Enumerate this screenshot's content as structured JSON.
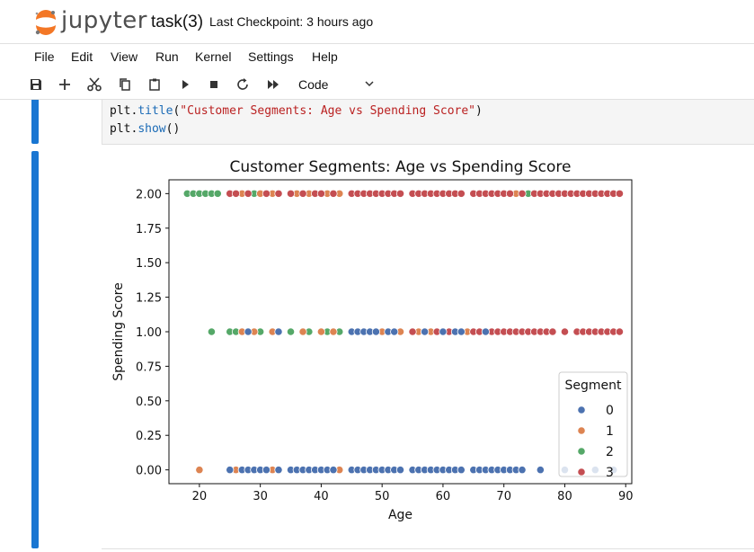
{
  "header": {
    "brand": "jupyter",
    "notebook_title": "task(3)",
    "checkpoint": "Last Checkpoint: 3 hours ago"
  },
  "menu": [
    "File",
    "Edit",
    "View",
    "Run",
    "Kernel",
    "Settings",
    "Help"
  ],
  "toolbar": {
    "cell_type": "Code",
    "icons": [
      "save-icon",
      "plus-icon",
      "scissors-icon",
      "copy-icon",
      "paste-icon",
      "run-icon",
      "stop-icon",
      "restart-icon",
      "fast-forward-icon",
      "chevron-down-icon"
    ]
  },
  "code": {
    "line1_obj": "plt",
    "line1_fn": "title",
    "line1_str": "\"Customer Segments: Age vs Spending Score\"",
    "line2_obj": "plt",
    "line2_fn": "show"
  },
  "colors": {
    "accent": "#1976d2",
    "seg0": "#4c72b0",
    "seg1": "#dd8452",
    "seg2": "#55a868",
    "seg3": "#c44e52"
  },
  "chart_data": {
    "type": "scatter",
    "title": "Customer Segments: Age vs Spending Score",
    "xlabel": "Age",
    "ylabel": "Spending Score",
    "xlim": [
      15,
      91
    ],
    "ylim": [
      -0.1,
      2.1
    ],
    "xticks": [
      20,
      30,
      40,
      50,
      60,
      70,
      80,
      90
    ],
    "yticks": [
      0.0,
      0.25,
      0.5,
      0.75,
      1.0,
      1.25,
      1.5,
      1.75,
      2.0
    ],
    "xtick_labels": [
      "20",
      "30",
      "40",
      "50",
      "60",
      "70",
      "80",
      "90"
    ],
    "ytick_labels": [
      "0.00",
      "0.25",
      "0.50",
      "0.75",
      "1.00",
      "1.25",
      "1.50",
      "1.75",
      "2.00"
    ],
    "legend": {
      "title": "Segment",
      "placement": "lower-right",
      "entries": [
        "0",
        "1",
        "2",
        "3"
      ]
    },
    "series": [
      {
        "segment": 2,
        "points": [
          [
            18,
            2
          ],
          [
            19,
            2
          ],
          [
            20,
            2
          ],
          [
            21,
            2
          ],
          [
            22,
            2
          ],
          [
            23,
            2
          ],
          [
            26,
            2
          ],
          [
            29,
            2
          ],
          [
            31,
            2
          ],
          [
            22,
            1
          ],
          [
            25,
            1
          ],
          [
            26,
            1
          ],
          [
            30,
            1
          ],
          [
            35,
            1
          ],
          [
            38,
            1
          ],
          [
            41,
            1
          ],
          [
            43,
            1
          ],
          [
            74,
            2
          ]
        ]
      },
      {
        "segment": 1,
        "points": [
          [
            27,
            2
          ],
          [
            30,
            2
          ],
          [
            32,
            2
          ],
          [
            36,
            2
          ],
          [
            38,
            2
          ],
          [
            41,
            2
          ],
          [
            43,
            2
          ],
          [
            20,
            0
          ],
          [
            26,
            0
          ],
          [
            32,
            0
          ],
          [
            43,
            0
          ],
          [
            27,
            1
          ],
          [
            29,
            1
          ],
          [
            32,
            1
          ],
          [
            37,
            1
          ],
          [
            40,
            1
          ],
          [
            42,
            1
          ],
          [
            50,
            1
          ],
          [
            53,
            1
          ],
          [
            56,
            1
          ],
          [
            58,
            1
          ],
          [
            64,
            1
          ],
          [
            67,
            1
          ],
          [
            72,
            2
          ]
        ]
      },
      {
        "segment": 3,
        "points": [
          [
            25,
            2
          ],
          [
            26,
            2
          ],
          [
            28,
            2
          ],
          [
            31,
            2
          ],
          [
            33,
            2
          ],
          [
            35,
            2
          ],
          [
            37,
            2
          ],
          [
            39,
            2
          ],
          [
            40,
            2
          ],
          [
            42,
            2
          ],
          [
            45,
            2
          ],
          [
            46,
            2
          ],
          [
            47,
            2
          ],
          [
            48,
            2
          ],
          [
            49,
            2
          ],
          [
            50,
            2
          ],
          [
            51,
            2
          ],
          [
            52,
            2
          ],
          [
            53,
            2
          ],
          [
            55,
            2
          ],
          [
            56,
            2
          ],
          [
            57,
            2
          ],
          [
            58,
            2
          ],
          [
            59,
            2
          ],
          [
            60,
            2
          ],
          [
            61,
            2
          ],
          [
            62,
            2
          ],
          [
            63,
            2
          ],
          [
            65,
            2
          ],
          [
            66,
            2
          ],
          [
            67,
            2
          ],
          [
            68,
            2
          ],
          [
            69,
            2
          ],
          [
            70,
            2
          ],
          [
            71,
            2
          ],
          [
            73,
            2
          ],
          [
            75,
            2
          ],
          [
            76,
            2
          ],
          [
            77,
            2
          ],
          [
            78,
            2
          ],
          [
            79,
            2
          ],
          [
            80,
            2
          ],
          [
            81,
            2
          ],
          [
            82,
            2
          ],
          [
            83,
            2
          ],
          [
            84,
            2
          ],
          [
            85,
            2
          ],
          [
            86,
            2
          ],
          [
            87,
            2
          ],
          [
            88,
            2
          ],
          [
            89,
            2
          ],
          [
            55,
            1
          ],
          [
            57,
            1
          ],
          [
            59,
            1
          ],
          [
            61,
            1
          ],
          [
            65,
            1
          ],
          [
            66,
            1
          ],
          [
            68,
            1
          ],
          [
            69,
            1
          ],
          [
            70,
            1
          ],
          [
            71,
            1
          ],
          [
            72,
            1
          ],
          [
            73,
            1
          ],
          [
            74,
            1
          ],
          [
            75,
            1
          ],
          [
            76,
            1
          ],
          [
            77,
            1
          ],
          [
            78,
            1
          ],
          [
            80,
            1
          ],
          [
            82,
            1
          ],
          [
            83,
            1
          ],
          [
            84,
            1
          ],
          [
            85,
            1
          ],
          [
            86,
            1
          ],
          [
            87,
            1
          ],
          [
            88,
            1
          ],
          [
            89,
            1
          ]
        ]
      },
      {
        "segment": 0,
        "points": [
          [
            25,
            0
          ],
          [
            27,
            0
          ],
          [
            28,
            0
          ],
          [
            29,
            0
          ],
          [
            30,
            0
          ],
          [
            31,
            0
          ],
          [
            33,
            0
          ],
          [
            35,
            0
          ],
          [
            36,
            0
          ],
          [
            37,
            0
          ],
          [
            38,
            0
          ],
          [
            39,
            0
          ],
          [
            40,
            0
          ],
          [
            41,
            0
          ],
          [
            42,
            0
          ],
          [
            45,
            0
          ],
          [
            46,
            0
          ],
          [
            47,
            0
          ],
          [
            48,
            0
          ],
          [
            49,
            0
          ],
          [
            50,
            0
          ],
          [
            51,
            0
          ],
          [
            52,
            0
          ],
          [
            53,
            0
          ],
          [
            55,
            0
          ],
          [
            56,
            0
          ],
          [
            57,
            0
          ],
          [
            58,
            0
          ],
          [
            59,
            0
          ],
          [
            60,
            0
          ],
          [
            61,
            0
          ],
          [
            62,
            0
          ],
          [
            63,
            0
          ],
          [
            65,
            0
          ],
          [
            66,
            0
          ],
          [
            67,
            0
          ],
          [
            68,
            0
          ],
          [
            69,
            0
          ],
          [
            70,
            0
          ],
          [
            71,
            0
          ],
          [
            72,
            0
          ],
          [
            73,
            0
          ],
          [
            76,
            0
          ],
          [
            80,
            0
          ],
          [
            85,
            0
          ],
          [
            88,
            0
          ],
          [
            45,
            1
          ],
          [
            46,
            1
          ],
          [
            47,
            1
          ],
          [
            48,
            1
          ],
          [
            49,
            1
          ],
          [
            51,
            1
          ],
          [
            52,
            1
          ],
          [
            57,
            1
          ],
          [
            60,
            1
          ],
          [
            62,
            1
          ],
          [
            63,
            1
          ],
          [
            67,
            1
          ],
          [
            33,
            1
          ],
          [
            28,
            1
          ]
        ]
      }
    ]
  }
}
